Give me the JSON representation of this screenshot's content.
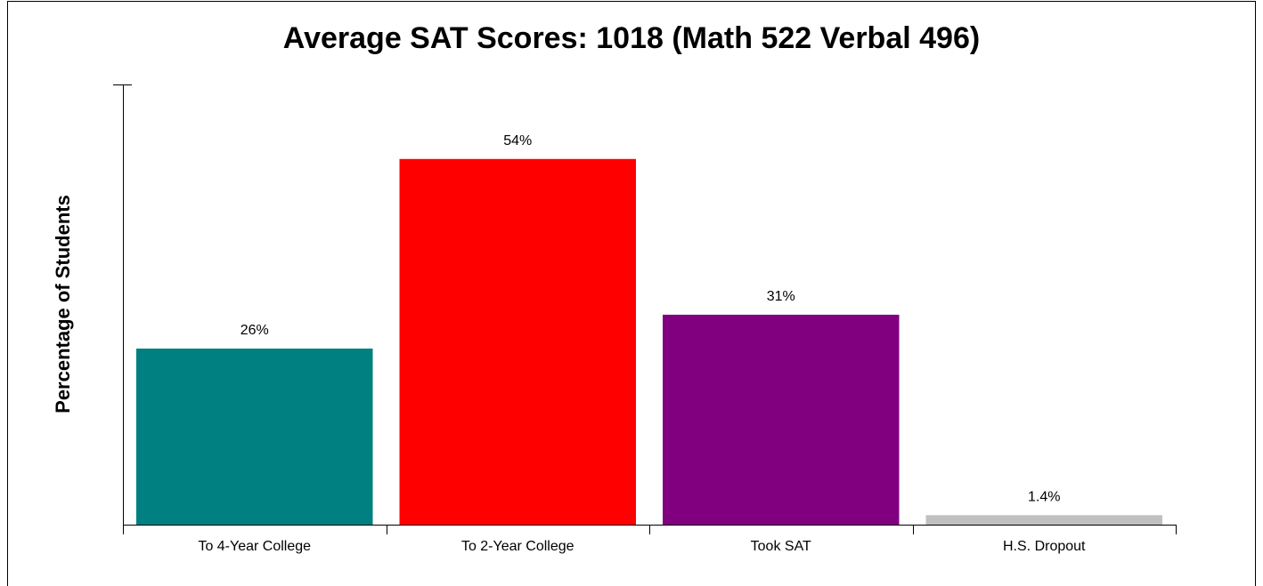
{
  "chart_data": {
    "type": "bar",
    "title": "Average SAT Scores: 1018 (Math 522 Verbal 496)",
    "y_label": "Percentage of Students",
    "categories": [
      "To 4-Year College",
      "To 2-Year College",
      "Took SAT",
      "H.S. Dropout"
    ],
    "values": [
      26,
      54,
      31,
      1.4
    ],
    "value_labels": [
      "26%",
      "54%",
      "31%",
      "1.4%"
    ],
    "colors": [
      "#008080",
      "#ff0000",
      "#800080",
      "#c0c0c0"
    ],
    "ylim": [
      0,
      65
    ]
  }
}
